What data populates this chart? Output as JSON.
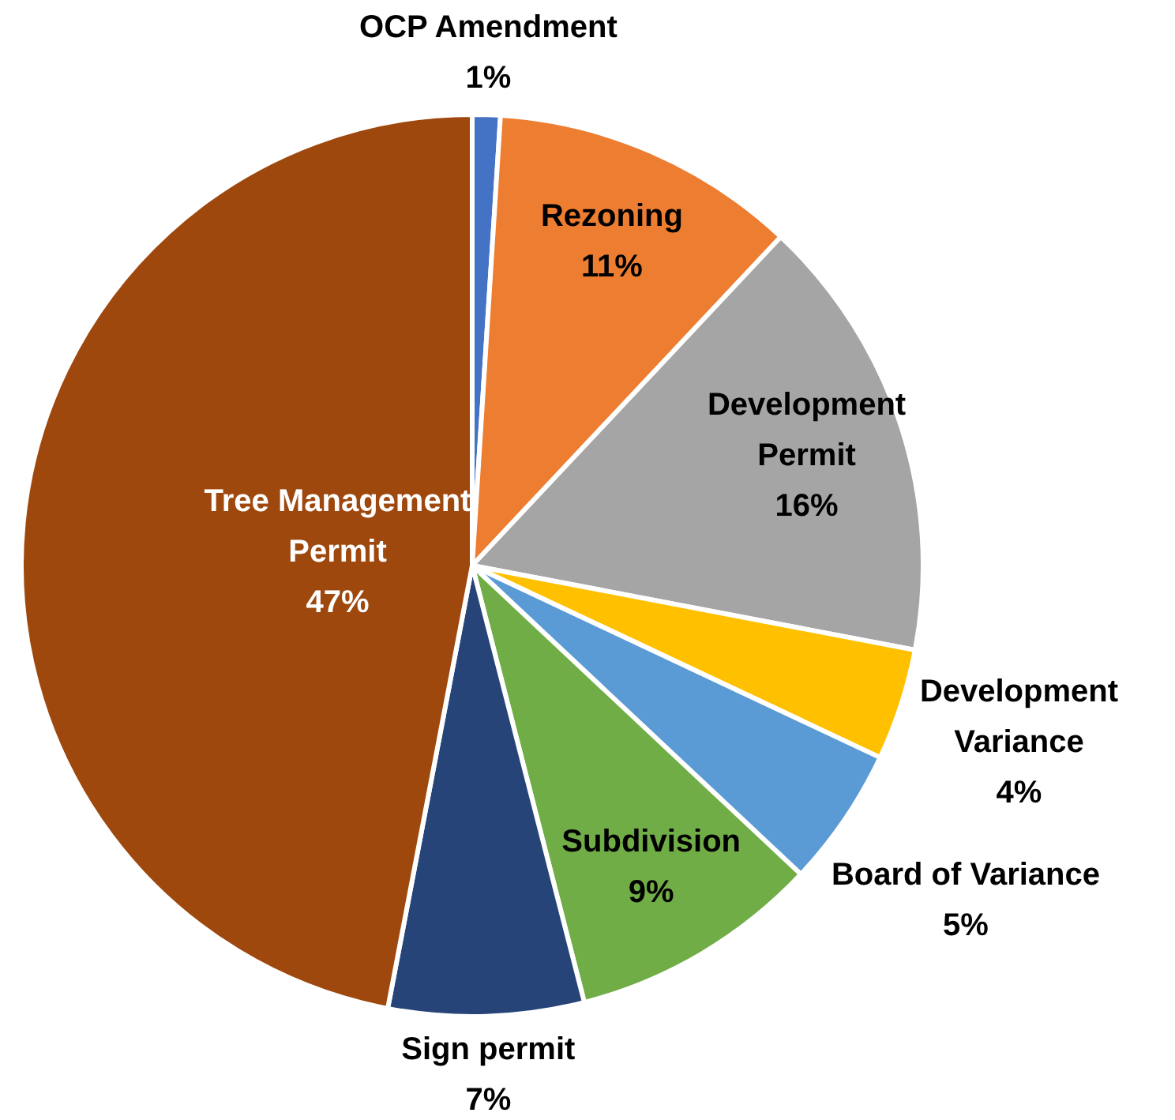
{
  "chart_data": {
    "type": "pie",
    "categories": [
      "OCP Amendment",
      "Rezoning",
      "Development Permit",
      "Development Variance",
      "Board of Variance",
      "Subdivision",
      "Sign permit",
      "Tree Management Permit"
    ],
    "values": [
      1,
      11,
      16,
      4,
      5,
      9,
      7,
      47
    ],
    "colors": [
      "#4472c4",
      "#ed7d31",
      "#a5a5a5",
      "#ffc000",
      "#5b9bd5",
      "#70ad47",
      "#264478",
      "#9e480e"
    ],
    "value_labels": [
      "1%",
      "11%",
      "16%",
      "4%",
      "5%",
      "9%",
      "7%",
      "47%"
    ],
    "legend": false
  }
}
